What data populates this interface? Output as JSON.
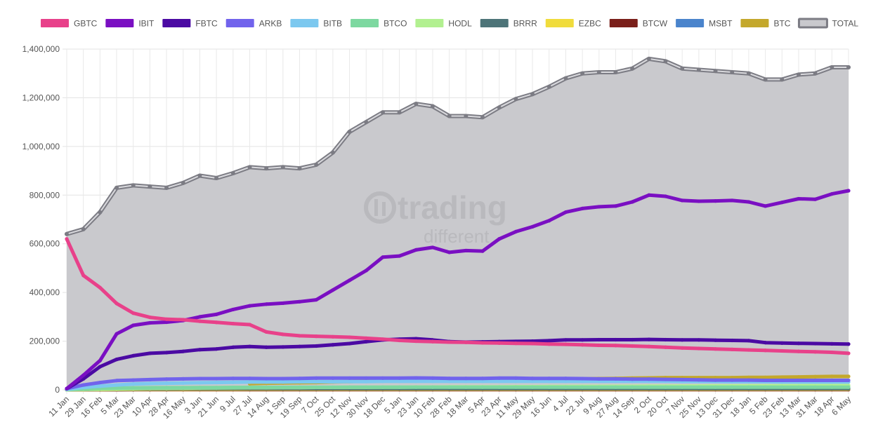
{
  "watermark": {
    "main": "trading",
    "sub": "different"
  },
  "chart_data": {
    "type": "line",
    "title": "",
    "xlabel": "",
    "ylabel": "",
    "ylim": [
      0,
      1400000
    ],
    "yticks": [
      0,
      200000,
      400000,
      600000,
      800000,
      1000000,
      1200000,
      1400000
    ],
    "ytick_labels": [
      "0",
      "200,000",
      "400,000",
      "600,000",
      "800,000",
      "1,000,000",
      "1,200,000",
      "1,400,000"
    ],
    "grid": true,
    "legend_position": "top",
    "x": [
      "11 Jan",
      "29 Jan",
      "16 Feb",
      "5 Mar",
      "23 Mar",
      "10 Apr",
      "28 Apr",
      "16 May",
      "3 Jun",
      "21 Jun",
      "9 Jul",
      "27 Jul",
      "14 Aug",
      "1 Sep",
      "19 Sep",
      "7 Oct",
      "25 Oct",
      "12 Nov",
      "30 Nov",
      "18 Dec",
      "5 Jan",
      "23 Jan",
      "10 Feb",
      "28 Feb",
      "18 Mar",
      "5 Apr",
      "23 Apr",
      "11 May",
      "29 May",
      "16 Jun",
      "4 Jul",
      "22 Jul",
      "9 Aug",
      "27 Aug",
      "14 Sep",
      "2 Oct",
      "20 Oct",
      "7 Nov",
      "25 Nov",
      "13 Dec",
      "31 Dec",
      "18 Jan",
      "5 Feb",
      "23 Feb",
      "13 Mar",
      "31 Mar",
      "18 Apr",
      "6 May"
    ],
    "series": [
      {
        "name": "GBTC",
        "color": "#e8418a",
        "values": [
          620000,
          470000,
          420000,
          355000,
          315000,
          298000,
          290000,
          288000,
          282000,
          277000,
          272000,
          268000,
          238000,
          228000,
          222000,
          220000,
          218000,
          216000,
          212000,
          208000,
          203000,
          200000,
          198000,
          196000,
          195000,
          193000,
          192000,
          191000,
          190000,
          188000,
          187000,
          185000,
          183000,
          182000,
          180000,
          178000,
          175000,
          172000,
          170000,
          168000,
          166000,
          164000,
          162000,
          160000,
          158000,
          156000,
          154000,
          150000
        ]
      },
      {
        "name": "IBIT",
        "color": "#7a0fc2",
        "values": [
          5000,
          60000,
          120000,
          230000,
          265000,
          275000,
          278000,
          285000,
          300000,
          310000,
          330000,
          345000,
          352000,
          356000,
          362000,
          370000,
          410000,
          450000,
          490000,
          545000,
          550000,
          575000,
          585000,
          565000,
          572000,
          570000,
          620000,
          650000,
          670000,
          695000,
          730000,
          745000,
          752000,
          755000,
          772000,
          800000,
          795000,
          778000,
          775000,
          776000,
          778000,
          772000,
          755000,
          770000,
          785000,
          783000,
          805000,
          818000
        ]
      },
      {
        "name": "FBTC",
        "color": "#4b0aa3",
        "values": [
          5000,
          45000,
          95000,
          125000,
          140000,
          150000,
          153000,
          158000,
          165000,
          168000,
          175000,
          178000,
          175000,
          176000,
          178000,
          180000,
          185000,
          190000,
          198000,
          205000,
          208000,
          210000,
          205000,
          198000,
          196000,
          197000,
          198000,
          199000,
          200000,
          202000,
          205000,
          205000,
          206000,
          206000,
          206000,
          207000,
          206000,
          205000,
          205000,
          204000,
          203000,
          202000,
          194000,
          192000,
          191000,
          190000,
          189000,
          188000
        ]
      },
      {
        "name": "ARKB",
        "color": "#7163ec",
        "values": [
          5000,
          20000,
          30000,
          38000,
          40000,
          42000,
          44000,
          45000,
          46000,
          46000,
          47000,
          47000,
          46000,
          46000,
          47000,
          48000,
          48000,
          48000,
          48000,
          48000,
          48000,
          49000,
          48000,
          47000,
          47000,
          47000,
          48000,
          48000,
          47000,
          47000,
          47000,
          46000,
          45000,
          45000,
          44000,
          44000,
          43000,
          42000,
          41000,
          40000,
          40000,
          40000,
          39000,
          39000,
          39000,
          39000,
          39000,
          39000
        ]
      },
      {
        "name": "BITB",
        "color": "#7cc8ef",
        "values": [
          2000,
          10000,
          15000,
          20000,
          24000,
          26000,
          27000,
          28000,
          29000,
          30000,
          31000,
          32000,
          32000,
          32000,
          33000,
          33000,
          33000,
          34000,
          34000,
          35000,
          35000,
          35000,
          35000,
          35000,
          35000,
          35000,
          35000,
          35000,
          35000,
          35000,
          35000,
          35000,
          35000,
          35000,
          35000,
          35000,
          35000,
          34000,
          34000,
          34000,
          33000,
          33000,
          33000,
          32000,
          32000,
          32000,
          32000,
          32000
        ]
      },
      {
        "name": "BTCO",
        "color": "#7dd8a0",
        "values": [
          1000,
          4000,
          6000,
          7000,
          8000,
          8500,
          9000,
          9000,
          9500,
          9500,
          10000,
          10000,
          10000,
          10000,
          10500,
          10500,
          10500,
          11000,
          11000,
          11000,
          11000,
          11000,
          11000,
          11000,
          11000,
          11000,
          11000,
          11000,
          11000,
          11000,
          11000,
          11000,
          11000,
          11000,
          11000,
          11000,
          11000,
          11000,
          11000,
          11000,
          11000,
          11000,
          11000,
          11000,
          11000,
          11000,
          11000,
          11000
        ]
      },
      {
        "name": "HODL",
        "color": "#b2f090",
        "values": [
          500,
          2000,
          3000,
          4000,
          5000,
          6000,
          6500,
          7000,
          7500,
          8000,
          8500,
          9000,
          9000,
          9500,
          9500,
          10000,
          10000,
          10500,
          10500,
          11000,
          11000,
          11500,
          11500,
          12000,
          12000,
          12500,
          12500,
          13000,
          13000,
          13500,
          13500,
          14000,
          14000,
          14500,
          14500,
          15000,
          15000,
          15500,
          15500,
          16000,
          16000,
          16500,
          16500,
          17000,
          17000,
          17500,
          17500,
          18000
        ]
      },
      {
        "name": "BRRR",
        "color": "#4d7478",
        "values": [
          500,
          1500,
          2500,
          3000,
          3500,
          4000,
          4000,
          4500,
          4500,
          4500,
          5000,
          5000,
          5000,
          5000,
          5000,
          5000,
          5000,
          5000,
          5000,
          5000,
          5000,
          5000,
          5000,
          5000,
          5000,
          5000,
          5000,
          5000,
          5000,
          5000,
          5000,
          5000,
          5000,
          5000,
          5000,
          5000,
          5000,
          5000,
          5000,
          5000,
          5000,
          5000,
          5000,
          5000,
          5000,
          5000,
          5000,
          5000
        ]
      },
      {
        "name": "EZBC",
        "color": "#f0dc3c",
        "values": [
          200,
          800,
          1200,
          1500,
          1800,
          2000,
          2200,
          2400,
          2500,
          2600,
          2700,
          2800,
          2900,
          3000,
          3000,
          3000,
          3000,
          3000,
          3000,
          3000,
          3000,
          3000,
          3000,
          3000,
          3000,
          3000,
          3000,
          3000,
          3000,
          3000,
          3000,
          3000,
          3000,
          3000,
          3000,
          3000,
          3000,
          3000,
          3000,
          3000,
          3000,
          3000,
          3000,
          3000,
          3000,
          3000,
          3000,
          3000
        ]
      },
      {
        "name": "BTCW",
        "color": "#7a1f1a",
        "values": [
          100,
          200,
          300,
          400,
          500,
          600,
          700,
          700,
          800,
          800,
          900,
          900,
          900,
          1000,
          1000,
          1000,
          1000,
          1000,
          1000,
          1000,
          1000,
          1000,
          1000,
          1000,
          1000,
          1000,
          1000,
          1000,
          1000,
          1000,
          1000,
          1000,
          1000,
          1000,
          1000,
          1000,
          1000,
          1000,
          1000,
          1000,
          1000,
          1000,
          1000,
          1000,
          1000,
          1000,
          1000,
          1000
        ]
      },
      {
        "name": "MSBT",
        "color": "#4a84cc",
        "values": [
          null,
          null,
          null,
          null,
          null,
          null,
          null,
          null,
          null,
          null,
          null,
          null,
          null,
          null,
          null,
          null,
          null,
          null,
          null,
          null,
          null,
          null,
          null,
          null,
          null,
          null,
          null,
          null,
          null,
          null,
          null,
          null,
          null,
          null,
          null,
          null,
          null,
          null,
          null,
          null,
          null,
          null,
          null,
          null,
          null,
          null,
          null,
          null
        ]
      },
      {
        "name": "BTC",
        "color": "#c4a82c",
        "values": [
          null,
          null,
          null,
          null,
          null,
          null,
          null,
          null,
          null,
          null,
          null,
          25000,
          27000,
          28000,
          29000,
          30000,
          32000,
          34000,
          36000,
          38000,
          38000,
          39000,
          39000,
          39000,
          39000,
          40000,
          40000,
          41000,
          42000,
          43000,
          44000,
          45000,
          46000,
          47000,
          48000,
          49000,
          50000,
          50000,
          50000,
          50000,
          50000,
          51000,
          51000,
          52000,
          53000,
          54000,
          55000,
          55000
        ]
      },
      {
        "name": "TOTAL",
        "color": "#7c7c84",
        "fill": "#c9c9cd",
        "values": [
          640000,
          660000,
          730000,
          830000,
          840000,
          835000,
          830000,
          850000,
          880000,
          870000,
          890000,
          915000,
          910000,
          915000,
          910000,
          925000,
          975000,
          1060000,
          1100000,
          1140000,
          1140000,
          1175000,
          1165000,
          1125000,
          1125000,
          1120000,
          1160000,
          1195000,
          1215000,
          1245000,
          1280000,
          1300000,
          1305000,
          1305000,
          1320000,
          1360000,
          1350000,
          1320000,
          1315000,
          1310000,
          1305000,
          1300000,
          1275000,
          1275000,
          1295000,
          1300000,
          1325000,
          1325000
        ]
      }
    ]
  }
}
